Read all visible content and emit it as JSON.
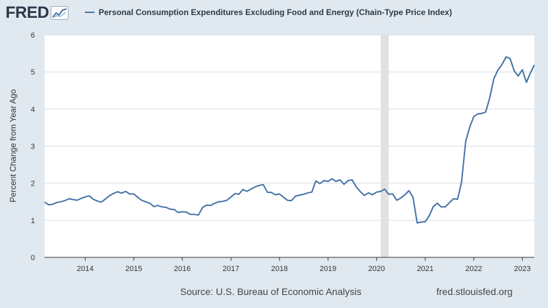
{
  "header": {
    "logo_text": "FRED",
    "logo_icon": "line-graph-icon",
    "legend_label": "Personal Consumption Expenditures Excluding Food and Energy (Chain-Type Price Index)",
    "line_color": "#4572a7"
  },
  "footer": {
    "source": "Source: U.S. Bureau of Economic Analysis",
    "url": "fred.stlouisfed.org"
  },
  "chart_data": {
    "type": "line",
    "ylabel": "Percent Change from Year Ago",
    "xlabel": "",
    "title": "",
    "x_unit": "date",
    "x_range": [
      "2013-03-01",
      "2023-04-01"
    ],
    "ylim": [
      0,
      6
    ],
    "y_ticks": [
      "0",
      "1",
      "2",
      "3",
      "4",
      "5",
      "6"
    ],
    "x_ticks": [
      {
        "label": "2014",
        "date": "2014-01-01"
      },
      {
        "label": "2015",
        "date": "2015-01-01"
      },
      {
        "label": "2016",
        "date": "2016-01-01"
      },
      {
        "label": "2017",
        "date": "2017-01-01"
      },
      {
        "label": "2018",
        "date": "2018-01-01"
      },
      {
        "label": "2019",
        "date": "2019-01-01"
      },
      {
        "label": "2020",
        "date": "2020-01-01"
      },
      {
        "label": "2021",
        "date": "2021-01-01"
      },
      {
        "label": "2022",
        "date": "2022-01-01"
      },
      {
        "label": "2023",
        "date": "2023-01-01"
      }
    ],
    "grid": "horizontal",
    "recession_shading": [
      {
        "start": "2020-02-01",
        "end": "2020-04-01"
      }
    ],
    "series": [
      {
        "name": "Personal Consumption Expenditures Excluding Food and Energy (Chain-Type Price Index)",
        "color": "#4572a7",
        "points": [
          [
            "2013-03-01",
            1.49
          ],
          [
            "2013-04-01",
            1.42
          ],
          [
            "2013-05-01",
            1.43
          ],
          [
            "2013-06-01",
            1.48
          ],
          [
            "2013-07-01",
            1.5
          ],
          [
            "2013-08-01",
            1.53
          ],
          [
            "2013-09-01",
            1.58
          ],
          [
            "2013-10-01",
            1.56
          ],
          [
            "2013-11-01",
            1.54
          ],
          [
            "2013-12-01",
            1.59
          ],
          [
            "2014-01-01",
            1.63
          ],
          [
            "2014-02-01",
            1.66
          ],
          [
            "2014-03-01",
            1.57
          ],
          [
            "2014-04-01",
            1.52
          ],
          [
            "2014-05-01",
            1.49
          ],
          [
            "2014-06-01",
            1.57
          ],
          [
            "2014-07-01",
            1.66
          ],
          [
            "2014-08-01",
            1.72
          ],
          [
            "2014-09-01",
            1.77
          ],
          [
            "2014-10-01",
            1.73
          ],
          [
            "2014-11-01",
            1.78
          ],
          [
            "2014-12-01",
            1.71
          ],
          [
            "2015-01-01",
            1.71
          ],
          [
            "2015-02-01",
            1.62
          ],
          [
            "2015-03-01",
            1.54
          ],
          [
            "2015-04-01",
            1.5
          ],
          [
            "2015-05-01",
            1.46
          ],
          [
            "2015-06-01",
            1.37
          ],
          [
            "2015-07-01",
            1.4
          ],
          [
            "2015-08-01",
            1.36
          ],
          [
            "2015-09-01",
            1.35
          ],
          [
            "2015-10-01",
            1.3
          ],
          [
            "2015-11-01",
            1.29
          ],
          [
            "2015-12-01",
            1.21
          ],
          [
            "2016-01-01",
            1.23
          ],
          [
            "2016-02-01",
            1.22
          ],
          [
            "2016-03-01",
            1.16
          ],
          [
            "2016-04-01",
            1.16
          ],
          [
            "2016-05-01",
            1.14
          ],
          [
            "2016-06-01",
            1.34
          ],
          [
            "2016-07-01",
            1.41
          ],
          [
            "2016-08-01",
            1.4
          ],
          [
            "2016-09-01",
            1.46
          ],
          [
            "2016-10-01",
            1.5
          ],
          [
            "2016-11-01",
            1.51
          ],
          [
            "2016-12-01",
            1.54
          ],
          [
            "2017-01-01",
            1.63
          ],
          [
            "2017-02-01",
            1.72
          ],
          [
            "2017-03-01",
            1.7
          ],
          [
            "2017-04-01",
            1.83
          ],
          [
            "2017-05-01",
            1.78
          ],
          [
            "2017-06-01",
            1.84
          ],
          [
            "2017-07-01",
            1.9
          ],
          [
            "2017-08-01",
            1.94
          ],
          [
            "2017-09-01",
            1.96
          ],
          [
            "2017-10-01",
            1.76
          ],
          [
            "2017-11-01",
            1.75
          ],
          [
            "2017-12-01",
            1.69
          ],
          [
            "2018-01-01",
            1.71
          ],
          [
            "2018-02-01",
            1.62
          ],
          [
            "2018-03-01",
            1.54
          ],
          [
            "2018-04-01",
            1.53
          ],
          [
            "2018-05-01",
            1.65
          ],
          [
            "2018-06-01",
            1.68
          ],
          [
            "2018-07-01",
            1.7
          ],
          [
            "2018-08-01",
            1.74
          ],
          [
            "2018-09-01",
            1.76
          ],
          [
            "2018-10-01",
            2.06
          ],
          [
            "2018-11-01",
            1.99
          ],
          [
            "2018-12-01",
            2.07
          ],
          [
            "2019-01-01",
            2.05
          ],
          [
            "2019-02-01",
            2.12
          ],
          [
            "2019-03-01",
            2.05
          ],
          [
            "2019-04-01",
            2.09
          ],
          [
            "2019-05-01",
            1.97
          ],
          [
            "2019-06-01",
            2.07
          ],
          [
            "2019-07-01",
            2.09
          ],
          [
            "2019-08-01",
            1.9
          ],
          [
            "2019-09-01",
            1.77
          ],
          [
            "2019-10-01",
            1.67
          ],
          [
            "2019-11-01",
            1.74
          ],
          [
            "2019-12-01",
            1.69
          ],
          [
            "2020-01-01",
            1.76
          ],
          [
            "2020-02-01",
            1.78
          ],
          [
            "2020-03-01",
            1.84
          ],
          [
            "2020-04-01",
            1.7
          ],
          [
            "2020-05-01",
            1.71
          ],
          [
            "2020-06-01",
            1.54
          ],
          [
            "2020-07-01",
            1.6
          ],
          [
            "2020-08-01",
            1.69
          ],
          [
            "2020-09-01",
            1.8
          ],
          [
            "2020-10-01",
            1.62
          ],
          [
            "2020-11-01",
            0.93
          ],
          [
            "2020-12-01",
            0.95
          ],
          [
            "2021-01-01",
            0.96
          ],
          [
            "2021-02-01",
            1.13
          ],
          [
            "2021-03-01",
            1.36
          ],
          [
            "2021-04-01",
            1.46
          ],
          [
            "2021-05-01",
            1.36
          ],
          [
            "2021-06-01",
            1.36
          ],
          [
            "2021-07-01",
            1.47
          ],
          [
            "2021-08-01",
            1.58
          ],
          [
            "2021-09-01",
            1.57
          ],
          [
            "2021-10-01",
            2.03
          ],
          [
            "2021-11-01",
            3.12
          ],
          [
            "2021-12-01",
            3.51
          ],
          [
            "2022-01-01",
            3.8
          ],
          [
            "2022-02-01",
            3.87
          ],
          [
            "2022-03-01",
            3.88
          ],
          [
            "2022-04-01",
            3.92
          ],
          [
            "2022-05-01",
            4.31
          ],
          [
            "2022-06-01",
            4.82
          ],
          [
            "2022-07-01",
            5.05
          ],
          [
            "2022-08-01",
            5.2
          ],
          [
            "2022-09-01",
            5.41
          ],
          [
            "2022-10-01",
            5.36
          ],
          [
            "2022-11-01",
            5.03
          ],
          [
            "2022-12-01",
            4.89
          ],
          [
            "2023-01-01",
            5.06
          ],
          [
            "2023-02-01",
            4.72
          ],
          [
            "2023-03-01",
            4.96
          ],
          [
            "2023-04-01",
            5.19
          ]
        ]
      }
    ]
  }
}
